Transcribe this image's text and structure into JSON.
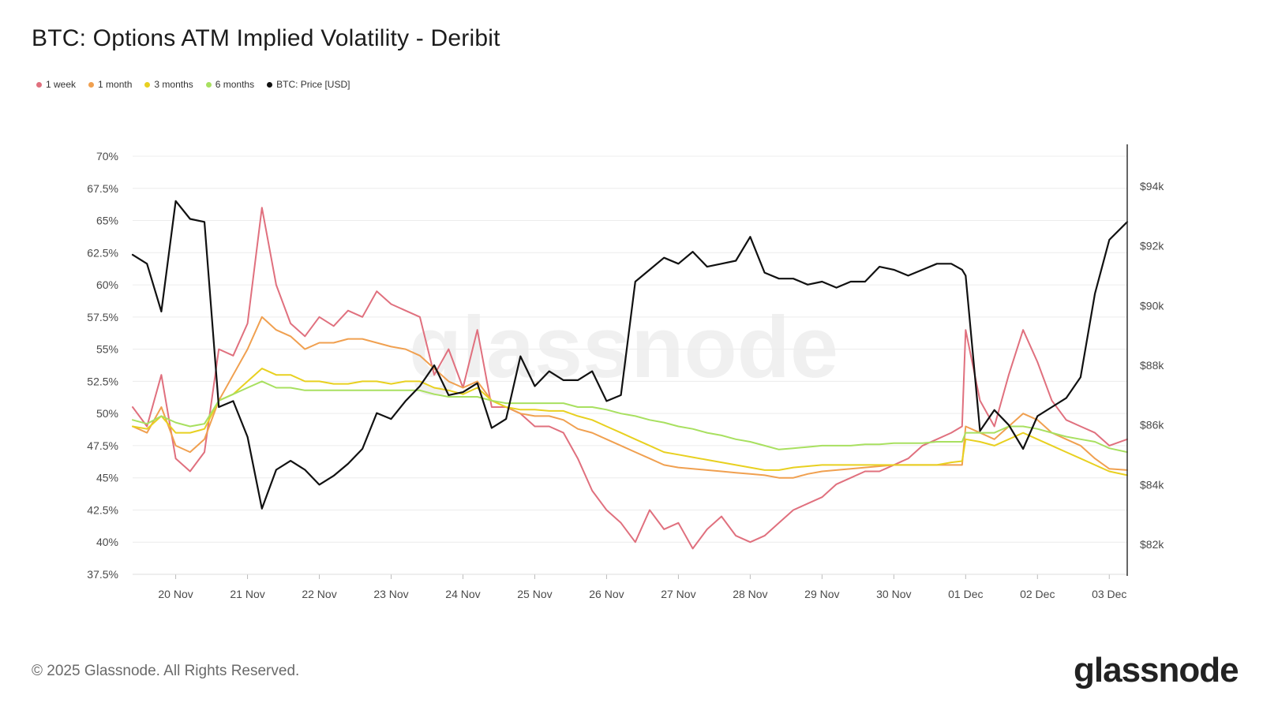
{
  "header": {
    "title": "BTC: Options ATM Implied Volatility - Deribit"
  },
  "legend": [
    {
      "label": "1 week",
      "color": "#e0707e"
    },
    {
      "label": "1 month",
      "color": "#f0a050"
    },
    {
      "label": "3 months",
      "color": "#e8d020"
    },
    {
      "label": "6 months",
      "color": "#a8e060"
    },
    {
      "label": "BTC: Price [USD]",
      "color": "#111111"
    }
  ],
  "footer": {
    "copyright": "© 2025 Glassnode. All Rights Reserved.",
    "brand": "glassnode",
    "watermark": "glassnode"
  },
  "chart_data": {
    "type": "line",
    "title": "BTC: Options ATM Implied Volatility - Deribit",
    "grid": true,
    "legend_position": "top-left",
    "x_tick_labels": [
      "20 Nov",
      "21 Nov",
      "22 Nov",
      "23 Nov",
      "24 Nov",
      "25 Nov",
      "26 Nov",
      "27 Nov",
      "28 Nov",
      "29 Nov",
      "30 Nov",
      "01 Dec",
      "02 Dec",
      "03 Dec"
    ],
    "xlim": [
      19.4,
      33.25
    ],
    "y_left": {
      "ylim": [
        37.5,
        70
      ],
      "tick_values": [
        37.5,
        40,
        42.5,
        45,
        47.5,
        50,
        52.5,
        55,
        57.5,
        60,
        62.5,
        65,
        67.5,
        70
      ],
      "tick_labels": [
        "37.5%",
        "40%",
        "42.5%",
        "45%",
        "47.5%",
        "50%",
        "52.5%",
        "55%",
        "57.5%",
        "60%",
        "62.5%",
        "65%",
        "67.5%",
        "70%"
      ]
    },
    "y_right": {
      "ylim": [
        81000,
        95000
      ],
      "tick_values": [
        82000,
        84000,
        86000,
        88000,
        90000,
        92000,
        94000
      ],
      "tick_labels": [
        "$82k",
        "$84k",
        "$86k",
        "$88k",
        "$90k",
        "$92k",
        "$94k"
      ]
    },
    "x": [
      19.4,
      19.6,
      19.8,
      20.0,
      20.2,
      20.4,
      20.6,
      20.8,
      21.0,
      21.2,
      21.4,
      21.6,
      21.8,
      22.0,
      22.2,
      22.4,
      22.6,
      22.8,
      23.0,
      23.2,
      23.4,
      23.6,
      23.8,
      24.0,
      24.2,
      24.4,
      24.6,
      24.8,
      25.0,
      25.2,
      25.4,
      25.6,
      25.8,
      26.0,
      26.2,
      26.4,
      26.6,
      26.8,
      27.0,
      27.2,
      27.4,
      27.6,
      27.8,
      28.0,
      28.2,
      28.4,
      28.6,
      28.8,
      29.0,
      29.2,
      29.4,
      29.6,
      29.8,
      30.0,
      30.2,
      30.4,
      30.6,
      30.8,
      30.95,
      31.0,
      31.2,
      31.4,
      31.6,
      31.8,
      32.0,
      32.2,
      32.4,
      32.6,
      32.8,
      33.0,
      33.25
    ],
    "series": [
      {
        "name": "1 week",
        "axis": "left",
        "color": "#e0707e",
        "values": [
          50.5,
          49.0,
          53.0,
          46.5,
          45.5,
          47.0,
          55.0,
          54.5,
          57.0,
          66.0,
          60.0,
          57.0,
          56.0,
          57.5,
          56.8,
          58.0,
          57.5,
          59.5,
          58.5,
          58.0,
          57.5,
          53.0,
          55.0,
          52.0,
          56.5,
          50.5,
          50.5,
          50.0,
          49.0,
          49.0,
          48.5,
          46.5,
          44.0,
          42.5,
          41.5,
          40.0,
          42.5,
          41.0,
          41.5,
          39.5,
          41.0,
          42.0,
          40.5,
          40.0,
          40.5,
          41.5,
          42.5,
          43.0,
          43.5,
          44.5,
          45.0,
          45.5,
          45.5,
          46.0,
          46.5,
          47.5,
          48.0,
          48.5,
          49.0,
          56.5,
          51.0,
          49.0,
          53.0,
          56.5,
          54.0,
          51.0,
          49.5,
          49.0,
          48.5,
          47.5,
          48.0
        ]
      },
      {
        "name": "1 month",
        "axis": "left",
        "color": "#f0a050",
        "values": [
          49.0,
          48.5,
          50.5,
          47.5,
          47.0,
          48.0,
          51.0,
          53.0,
          55.0,
          57.5,
          56.5,
          56.0,
          55.0,
          55.5,
          55.5,
          55.8,
          55.8,
          55.5,
          55.2,
          55.0,
          54.5,
          53.5,
          52.5,
          52.0,
          52.5,
          51.0,
          50.5,
          50.0,
          49.8,
          49.8,
          49.5,
          48.8,
          48.5,
          48.0,
          47.5,
          47.0,
          46.5,
          46.0,
          45.8,
          45.7,
          45.6,
          45.5,
          45.4,
          45.3,
          45.2,
          45.0,
          45.0,
          45.3,
          45.5,
          45.6,
          45.7,
          45.8,
          45.9,
          46.0,
          46.0,
          46.0,
          46.0,
          46.0,
          46.0,
          49.0,
          48.5,
          48.0,
          49.0,
          50.0,
          49.5,
          48.5,
          48.0,
          47.5,
          46.5,
          45.7,
          45.6
        ]
      },
      {
        "name": "3 months",
        "axis": "left",
        "color": "#e8d020",
        "values": [
          49.0,
          48.8,
          49.8,
          48.5,
          48.5,
          48.8,
          51.0,
          51.5,
          52.5,
          53.5,
          53.0,
          53.0,
          52.5,
          52.5,
          52.3,
          52.3,
          52.5,
          52.5,
          52.3,
          52.5,
          52.5,
          52.0,
          51.8,
          51.5,
          52.0,
          51.0,
          50.5,
          50.3,
          50.3,
          50.2,
          50.2,
          49.8,
          49.5,
          49.0,
          48.5,
          48.0,
          47.5,
          47.0,
          46.8,
          46.6,
          46.4,
          46.2,
          46.0,
          45.8,
          45.6,
          45.6,
          45.8,
          45.9,
          46.0,
          46.0,
          46.0,
          46.0,
          46.0,
          46.0,
          46.0,
          46.0,
          46.0,
          46.2,
          46.3,
          48.0,
          47.8,
          47.5,
          48.0,
          48.5,
          48.0,
          47.5,
          47.0,
          46.5,
          46.0,
          45.5,
          45.2
        ]
      },
      {
        "name": "6 months",
        "axis": "left",
        "color": "#a8e060",
        "values": [
          49.5,
          49.2,
          49.8,
          49.3,
          49.0,
          49.2,
          51.0,
          51.5,
          52.0,
          52.5,
          52.0,
          52.0,
          51.8,
          51.8,
          51.8,
          51.8,
          51.8,
          51.8,
          51.8,
          51.8,
          51.8,
          51.5,
          51.3,
          51.3,
          51.3,
          51.0,
          50.8,
          50.8,
          50.8,
          50.8,
          50.8,
          50.5,
          50.5,
          50.3,
          50.0,
          49.8,
          49.5,
          49.3,
          49.0,
          48.8,
          48.5,
          48.3,
          48.0,
          47.8,
          47.5,
          47.2,
          47.3,
          47.4,
          47.5,
          47.5,
          47.5,
          47.6,
          47.6,
          47.7,
          47.7,
          47.7,
          47.8,
          47.8,
          47.8,
          48.5,
          48.5,
          48.5,
          49.0,
          49.0,
          48.8,
          48.5,
          48.2,
          48.0,
          47.8,
          47.3,
          47.0
        ]
      },
      {
        "name": "BTC: Price [USD]",
        "axis": "right",
        "color": "#111111",
        "values": [
          91700,
          91400,
          89800,
          93500,
          92900,
          92800,
          86600,
          86800,
          85600,
          83200,
          84500,
          84800,
          84500,
          84000,
          84300,
          84700,
          85200,
          86400,
          86200,
          86800,
          87300,
          88000,
          87000,
          87100,
          87400,
          85900,
          86200,
          88300,
          87300,
          87800,
          87500,
          87500,
          87800,
          86800,
          87000,
          90800,
          91200,
          91600,
          91400,
          91800,
          91300,
          91400,
          91500,
          92300,
          91100,
          90900,
          90900,
          90700,
          90800,
          90600,
          90800,
          90800,
          91300,
          91200,
          91000,
          91200,
          91400,
          91400,
          91200,
          91000,
          85800,
          86500,
          86000,
          85200,
          86300,
          86600,
          86900,
          87600,
          90400,
          92200,
          92800
        ]
      }
    ]
  }
}
